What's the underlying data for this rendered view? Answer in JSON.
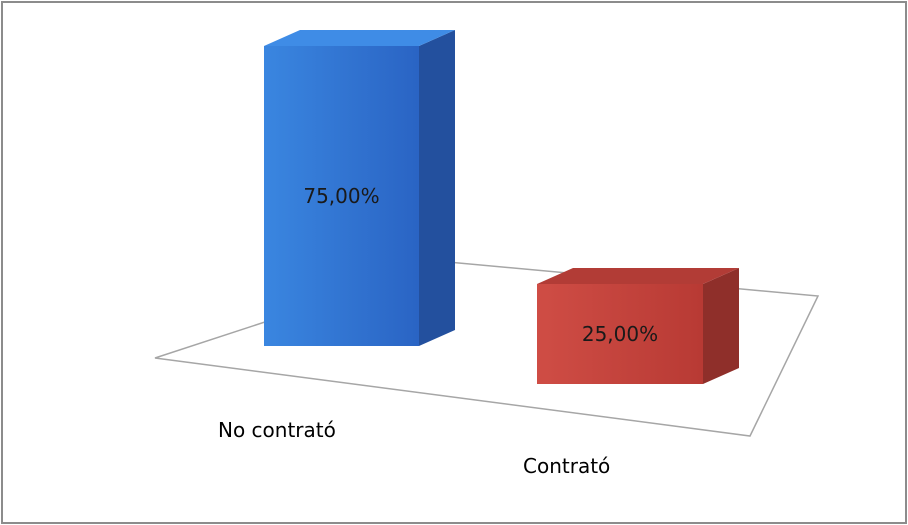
{
  "chart_data": {
    "type": "bar",
    "three_d": true,
    "categories": [
      "No contrató",
      "Contrató"
    ],
    "values": [
      75.0,
      25.0
    ],
    "value_unit": "%",
    "data_labels": [
      "75,00%",
      "25,00%"
    ],
    "title": "",
    "xlabel": "",
    "ylabel": "",
    "ylim": [
      0,
      80
    ],
    "grid": false,
    "legend": "none",
    "colors": [
      "#2f6fcf",
      "#c0403a"
    ]
  }
}
